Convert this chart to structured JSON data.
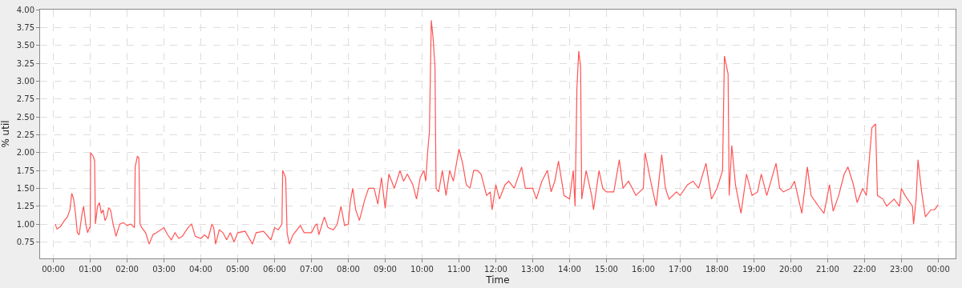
{
  "chart_data": {
    "type": "line",
    "xlabel": "Time",
    "ylabel": "% util",
    "xlim": [
      -0.36,
      24.47
    ],
    "ylim": [
      0.52,
      4.0
    ],
    "xticks": [
      {
        "value": 0,
        "label": "00:00"
      },
      {
        "value": 1,
        "label": "01:00"
      },
      {
        "value": 2,
        "label": "02:00"
      },
      {
        "value": 3,
        "label": "03:00"
      },
      {
        "value": 4,
        "label": "04:00"
      },
      {
        "value": 5,
        "label": "05:00"
      },
      {
        "value": 6,
        "label": "06:00"
      },
      {
        "value": 7,
        "label": "07:00"
      },
      {
        "value": 8,
        "label": "08:00"
      },
      {
        "value": 9,
        "label": "09:00"
      },
      {
        "value": 10,
        "label": "10:00"
      },
      {
        "value": 11,
        "label": "11:00"
      },
      {
        "value": 12,
        "label": "12:00"
      },
      {
        "value": 13,
        "label": "13:00"
      },
      {
        "value": 14,
        "label": "14:00"
      },
      {
        "value": 15,
        "label": "15:00"
      },
      {
        "value": 16,
        "label": "16:00"
      },
      {
        "value": 17,
        "label": "17:00"
      },
      {
        "value": 18,
        "label": "18:00"
      },
      {
        "value": 19,
        "label": "19:00"
      },
      {
        "value": 20,
        "label": "20:00"
      },
      {
        "value": 21,
        "label": "21:00"
      },
      {
        "value": 22,
        "label": "22:00"
      },
      {
        "value": 23,
        "label": "23:00"
      },
      {
        "value": 24,
        "label": "00:00"
      }
    ],
    "yticks": [
      {
        "value": 0.75,
        "label": "0.75"
      },
      {
        "value": 1.0,
        "label": "1.00"
      },
      {
        "value": 1.25,
        "label": "1.25"
      },
      {
        "value": 1.5,
        "label": "1.50"
      },
      {
        "value": 1.75,
        "label": "1.75"
      },
      {
        "value": 2.0,
        "label": "2.00"
      },
      {
        "value": 2.25,
        "label": "2.25"
      },
      {
        "value": 2.5,
        "label": "2.50"
      },
      {
        "value": 2.75,
        "label": "2.75"
      },
      {
        "value": 3.0,
        "label": "3.00"
      },
      {
        "value": 3.25,
        "label": "3.25"
      },
      {
        "value": 3.5,
        "label": "3.50"
      },
      {
        "value": 3.75,
        "label": "3.75"
      },
      {
        "value": 4.0,
        "label": "4.00"
      }
    ],
    "grid": true,
    "marker": "none",
    "line_style": "solid",
    "x": [
      0.05,
      0.1,
      0.2,
      0.3,
      0.38,
      0.45,
      0.5,
      0.55,
      0.6,
      0.65,
      0.7,
      0.78,
      0.82,
      0.88,
      0.93,
      0.98,
      1.0,
      1.01,
      1.08,
      1.12,
      1.14,
      1.2,
      1.25,
      1.3,
      1.35,
      1.4,
      1.45,
      1.5,
      1.55,
      1.62,
      1.7,
      1.8,
      1.9,
      2.0,
      2.1,
      2.2,
      2.22,
      2.28,
      2.32,
      2.35,
      2.4,
      2.5,
      2.6,
      2.7,
      2.8,
      3.0,
      3.1,
      3.2,
      3.3,
      3.4,
      3.5,
      3.65,
      3.75,
      3.85,
      4.0,
      4.1,
      4.2,
      4.3,
      4.35,
      4.4,
      4.5,
      4.6,
      4.7,
      4.8,
      4.9,
      5.0,
      5.2,
      5.4,
      5.5,
      5.7,
      5.9,
      6.0,
      6.1,
      6.2,
      6.22,
      6.3,
      6.34,
      6.4,
      6.5,
      6.7,
      6.8,
      7.0,
      7.1,
      7.15,
      7.2,
      7.35,
      7.45,
      7.6,
      7.7,
      7.8,
      7.9,
      8.0,
      8.05,
      8.12,
      8.2,
      8.3,
      8.45,
      8.55,
      8.7,
      8.8,
      8.9,
      9.0,
      9.1,
      9.25,
      9.4,
      9.5,
      9.6,
      9.75,
      9.85,
      9.95,
      10.05,
      10.1,
      10.15,
      10.2,
      10.25,
      10.3,
      10.35,
      10.38,
      10.45,
      10.55,
      10.65,
      10.75,
      10.85,
      11.0,
      11.1,
      11.2,
      11.3,
      11.4,
      11.5,
      11.6,
      11.75,
      11.85,
      11.9,
      12.0,
      12.1,
      12.25,
      12.35,
      12.5,
      12.7,
      12.8,
      13.0,
      13.1,
      13.25,
      13.4,
      13.5,
      13.6,
      13.7,
      13.85,
      14.0,
      14.1,
      14.15,
      14.2,
      14.25,
      14.3,
      14.33,
      14.45,
      14.6,
      14.65,
      14.8,
      14.9,
      15.0,
      15.2,
      15.35,
      15.45,
      15.6,
      15.8,
      16.0,
      16.05,
      16.2,
      16.35,
      16.5,
      16.6,
      16.7,
      16.9,
      17.0,
      17.2,
      17.35,
      17.5,
      17.7,
      17.85,
      18.0,
      18.15,
      18.2,
      18.3,
      18.33,
      18.4,
      18.5,
      18.65,
      18.8,
      18.95,
      19.1,
      19.2,
      19.35,
      19.6,
      19.7,
      19.8,
      20.0,
      20.1,
      20.3,
      20.45,
      20.55,
      20.75,
      20.9,
      21.05,
      21.15,
      21.3,
      21.45,
      21.55,
      21.7,
      21.8,
      21.95,
      22.05,
      22.2,
      22.3,
      22.35,
      22.5,
      22.6,
      22.8,
      22.95,
      23.0,
      23.1,
      23.3,
      23.33,
      23.4,
      23.45,
      23.55,
      23.65,
      23.8,
      23.9,
      24.0
    ],
    "series": [
      {
        "color": "#ff5555",
        "values": [
          1.0,
          0.93,
          0.97,
          1.05,
          1.1,
          1.2,
          1.43,
          1.35,
          1.15,
          0.88,
          0.85,
          1.15,
          1.25,
          1.0,
          0.88,
          0.95,
          0.95,
          2.0,
          1.95,
          1.88,
          1.0,
          1.25,
          1.3,
          1.15,
          1.2,
          1.05,
          1.1,
          1.23,
          1.2,
          1.0,
          0.83,
          1.0,
          1.02,
          0.98,
          1.0,
          0.95,
          1.8,
          1.95,
          1.92,
          1.0,
          0.95,
          0.88,
          0.72,
          0.85,
          0.88,
          0.95,
          0.85,
          0.78,
          0.88,
          0.8,
          0.83,
          0.95,
          1.0,
          0.83,
          0.8,
          0.85,
          0.8,
          1.0,
          0.95,
          0.72,
          0.92,
          0.88,
          0.78,
          0.88,
          0.75,
          0.88,
          0.9,
          0.72,
          0.88,
          0.9,
          0.78,
          0.95,
          0.92,
          1.0,
          1.75,
          1.65,
          0.88,
          0.72,
          0.85,
          0.98,
          0.88,
          0.88,
          0.98,
          1.0,
          0.85,
          1.1,
          0.95,
          0.92,
          1.0,
          1.25,
          0.98,
          1.0,
          1.3,
          1.5,
          1.2,
          1.05,
          1.35,
          1.5,
          1.5,
          1.28,
          1.65,
          1.22,
          1.7,
          1.5,
          1.75,
          1.6,
          1.7,
          1.55,
          1.35,
          1.65,
          1.75,
          1.6,
          2.0,
          2.3,
          3.85,
          3.6,
          3.2,
          1.5,
          1.45,
          1.75,
          1.4,
          1.75,
          1.6,
          2.05,
          1.85,
          1.55,
          1.5,
          1.75,
          1.75,
          1.7,
          1.4,
          1.45,
          1.2,
          1.55,
          1.35,
          1.55,
          1.6,
          1.5,
          1.8,
          1.5,
          1.5,
          1.35,
          1.6,
          1.75,
          1.45,
          1.6,
          1.88,
          1.4,
          1.35,
          1.75,
          1.25,
          2.9,
          3.42,
          3.2,
          1.35,
          1.75,
          1.4,
          1.2,
          1.75,
          1.5,
          1.45,
          1.45,
          1.9,
          1.5,
          1.6,
          1.4,
          1.5,
          2.0,
          1.6,
          1.25,
          1.97,
          1.5,
          1.35,
          1.45,
          1.4,
          1.55,
          1.6,
          1.5,
          1.85,
          1.35,
          1.5,
          1.75,
          3.35,
          3.1,
          1.4,
          2.1,
          1.55,
          1.15,
          1.7,
          1.4,
          1.45,
          1.7,
          1.4,
          1.85,
          1.5,
          1.45,
          1.5,
          1.6,
          1.15,
          1.8,
          1.4,
          1.25,
          1.15,
          1.55,
          1.18,
          1.4,
          1.7,
          1.8,
          1.55,
          1.3,
          1.5,
          1.4,
          2.35,
          2.4,
          1.4,
          1.35,
          1.25,
          1.35,
          1.25,
          1.5,
          1.4,
          1.25,
          1.0,
          1.35,
          1.9,
          1.45,
          1.1,
          1.2,
          1.2,
          1.27
        ]
      }
    ]
  }
}
